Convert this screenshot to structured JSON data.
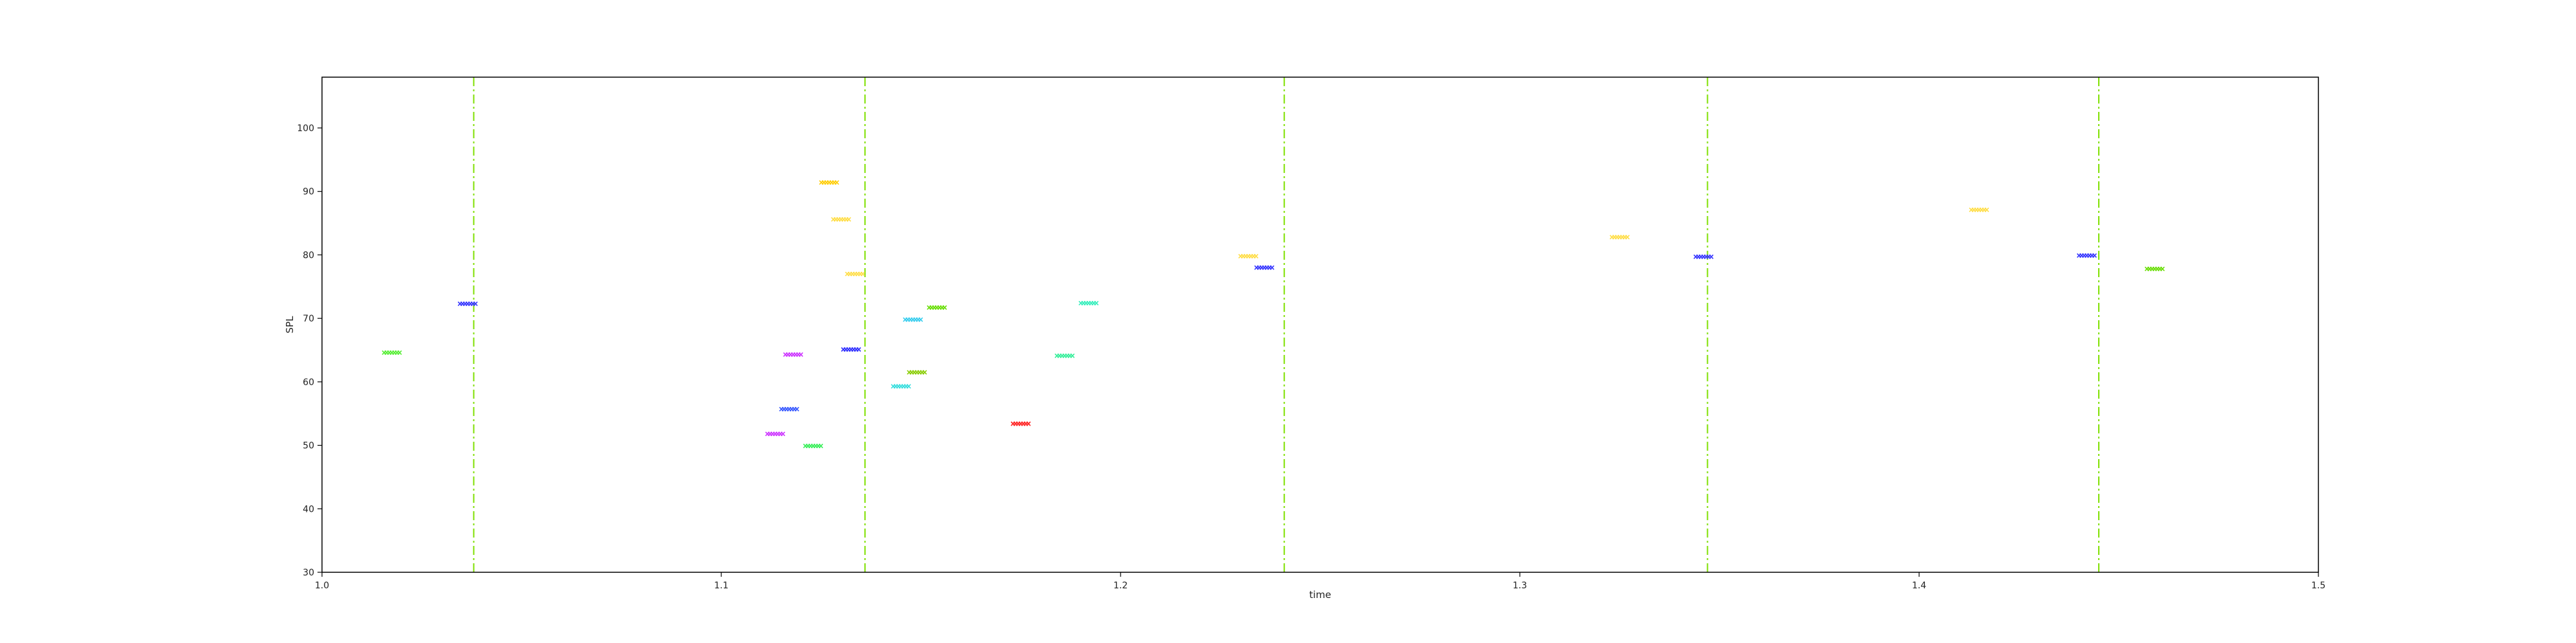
{
  "chart_data": {
    "type": "scatter",
    "xlabel": "time",
    "ylabel": "SPL",
    "xlim": [
      1.0,
      1.5
    ],
    "ylim": [
      30,
      108
    ],
    "x_ticks": [
      1.0,
      1.1,
      1.2,
      1.3,
      1.4,
      1.5
    ],
    "x_tick_labels": [
      "1.0",
      "1.1",
      "1.2",
      "1.3",
      "1.4",
      "1.5"
    ],
    "y_ticks": [
      30,
      40,
      50,
      60,
      70,
      80,
      90,
      100
    ],
    "y_tick_labels": [
      "30",
      "40",
      "50",
      "60",
      "70",
      "80",
      "90",
      "100"
    ],
    "marker": "x",
    "vertical_lines": {
      "color": "#7fe000",
      "style": "dashdot",
      "x": [
        1.038,
        1.136,
        1.241,
        1.347,
        1.445
      ]
    },
    "points": [
      {
        "x": 1.0175,
        "y": 64.6,
        "color": "#55ee33"
      },
      {
        "x": 1.0365,
        "y": 72.3,
        "color": "#3333ff"
      },
      {
        "x": 1.1135,
        "y": 51.8,
        "color": "#cc33ff"
      },
      {
        "x": 1.117,
        "y": 55.7,
        "color": "#3355ff"
      },
      {
        "x": 1.118,
        "y": 64.3,
        "color": "#cc33ff"
      },
      {
        "x": 1.123,
        "y": 49.9,
        "color": "#33ee55"
      },
      {
        "x": 1.127,
        "y": 91.4,
        "color": "#ffcc00"
      },
      {
        "x": 1.13,
        "y": 85.6,
        "color": "#ffdd44"
      },
      {
        "x": 1.1325,
        "y": 65.1,
        "color": "#3333ff"
      },
      {
        "x": 1.1335,
        "y": 77.0,
        "color": "#ffdd44"
      },
      {
        "x": 1.145,
        "y": 59.3,
        "color": "#33dddd"
      },
      {
        "x": 1.148,
        "y": 69.8,
        "color": "#33ccee"
      },
      {
        "x": 1.149,
        "y": 61.5,
        "color": "#88cc00"
      },
      {
        "x": 1.154,
        "y": 71.7,
        "color": "#66dd00"
      },
      {
        "x": 1.175,
        "y": 53.4,
        "color": "#ff2222"
      },
      {
        "x": 1.186,
        "y": 64.1,
        "color": "#33ee99"
      },
      {
        "x": 1.192,
        "y": 72.4,
        "color": "#33eebb"
      },
      {
        "x": 1.232,
        "y": 79.8,
        "color": "#ffdd44"
      },
      {
        "x": 1.236,
        "y": 78.0,
        "color": "#3333ff"
      },
      {
        "x": 1.325,
        "y": 82.8,
        "color": "#ffdd44"
      },
      {
        "x": 1.346,
        "y": 79.7,
        "color": "#3333ff"
      },
      {
        "x": 1.415,
        "y": 87.1,
        "color": "#ffdd44"
      },
      {
        "x": 1.442,
        "y": 79.9,
        "color": "#3333ff"
      },
      {
        "x": 1.459,
        "y": 77.8,
        "color": "#66dd00"
      }
    ]
  }
}
